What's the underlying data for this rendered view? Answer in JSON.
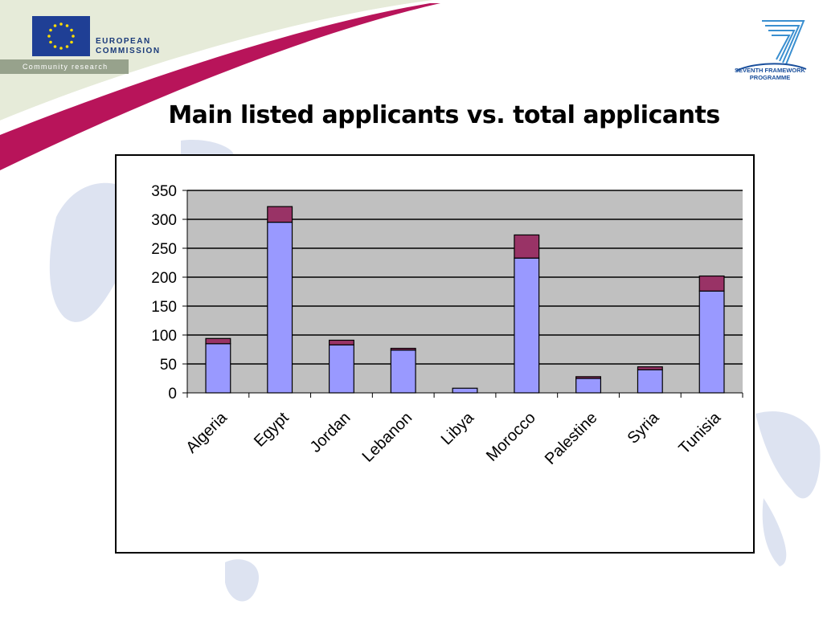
{
  "header": {
    "org_name_line1": "EUROPEAN",
    "org_name_line2": "COMMISSION",
    "org_sub": "Community research",
    "programme_line1": "SEVENTH FRAMEWORK",
    "programme_line2": "PROGRAMME"
  },
  "colors": {
    "primary": "#9999ff",
    "secondary": "#993366",
    "plot_bg": "#c0c0c0",
    "swoosh": "#b8145a",
    "eu_blue": "#1f3f95"
  },
  "chart_data": {
    "type": "bar",
    "stacked": true,
    "title": "Main listed applicants vs. total applicants",
    "categories": [
      "Algeria",
      "Egypt",
      "Jordan",
      "Lebanon",
      "Libya",
      "Morocco",
      "Palestine",
      "Syria",
      "Tunisia"
    ],
    "series": [
      {
        "values": [
          85,
          295,
          83,
          74,
          8,
          233,
          25,
          40,
          176
        ]
      },
      {
        "values": [
          9,
          27,
          8,
          3,
          0,
          40,
          3,
          5,
          26
        ]
      }
    ],
    "ylim": [
      0,
      350
    ],
    "yticks": [
      0,
      50,
      100,
      150,
      200,
      250,
      300,
      350
    ],
    "grid": true,
    "legend": "none"
  }
}
